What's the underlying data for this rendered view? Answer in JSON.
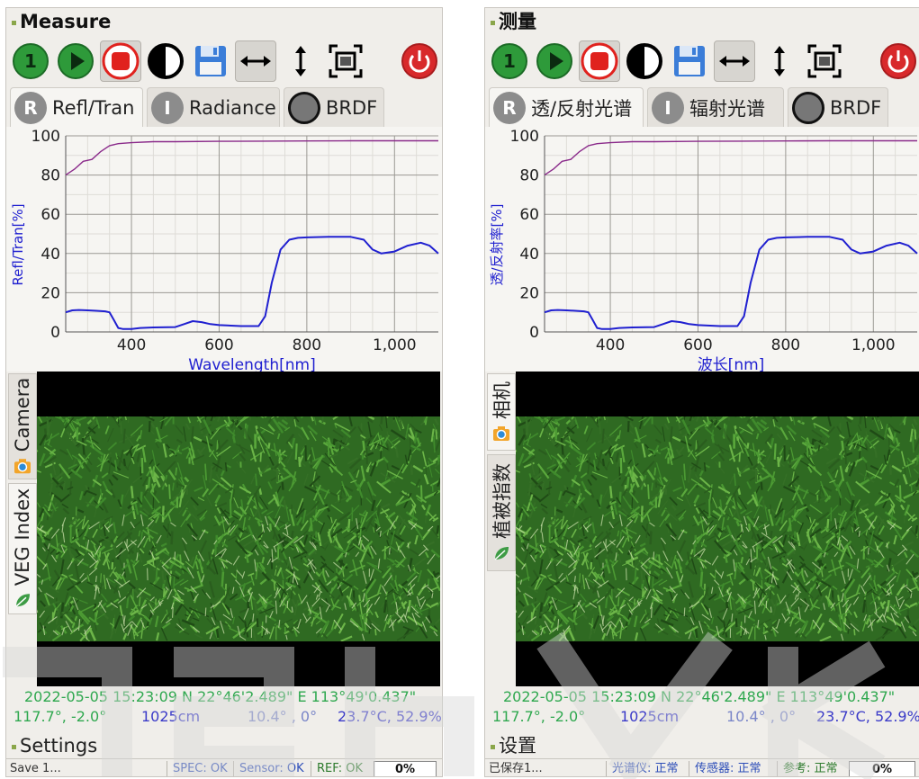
{
  "colors": {
    "green_btn": "#2e9a3a",
    "record_red": "#e0221e",
    "power_red": "#d8292b",
    "series_blue": "#2020d0",
    "series_purple": "#8a2a8a",
    "info_green": "#2fa84f",
    "info_blue": "#3a3ac8"
  },
  "left": {
    "title": "Measure",
    "toolbar": {
      "btn1": "1",
      "icons": [
        "one-icon",
        "play-icon",
        "record-icon",
        "contrast-icon",
        "save-icon",
        "horizontal-arrows-icon",
        "vertical-arrows-icon",
        "fit-screen-icon",
        "power-icon"
      ]
    },
    "tabs": [
      {
        "letter": "R",
        "label": "Refl/Tran"
      },
      {
        "letter": "I",
        "label": "Radiance"
      },
      {
        "letter": "",
        "label": "BRDF"
      }
    ],
    "chart_data": {
      "type": "line",
      "xlabel": "Wavelength[nm]",
      "ylabel": "Refl/Tran[%]",
      "xlim": [
        250,
        1100
      ],
      "ylim": [
        0,
        100
      ],
      "xticks": [
        400,
        600,
        800,
        1000
      ],
      "xtick_labels": [
        "400",
        "600",
        "800",
        "1,000"
      ],
      "yticks": [
        0,
        20,
        40,
        60,
        80,
        100
      ],
      "ytick_labels": [
        "0",
        "20",
        "40",
        "60",
        "80",
        "100"
      ],
      "grid": true,
      "series": [
        {
          "color": "#8a2a8a",
          "x": [
            250,
            270,
            290,
            310,
            330,
            350,
            370,
            400,
            450,
            500,
            600,
            700,
            800,
            900,
            1000,
            1100
          ],
          "y": [
            80,
            83,
            87,
            88,
            92,
            95,
            96,
            96.5,
            97,
            97,
            97.2,
            97.3,
            97.4,
            97.5,
            97.5,
            97.5
          ]
        },
        {
          "color": "#2020d0",
          "x": [
            250,
            265,
            280,
            300,
            320,
            340,
            350,
            360,
            370,
            380,
            400,
            420,
            450,
            500,
            520,
            540,
            560,
            580,
            600,
            650,
            690,
            705,
            720,
            740,
            760,
            780,
            800,
            850,
            900,
            930,
            950,
            970,
            1000,
            1030,
            1060,
            1080,
            1095,
            1100
          ],
          "y": [
            10,
            11,
            11.2,
            11,
            10.8,
            10.5,
            10,
            6,
            2,
            1.5,
            1.5,
            2,
            2.3,
            2.5,
            4,
            5.5,
            5,
            4,
            3.5,
            3,
            3,
            8,
            25,
            42,
            47,
            48,
            48.2,
            48.5,
            48.5,
            47,
            42,
            40,
            41,
            44,
            45.5,
            44,
            41,
            40
          ]
        }
      ]
    },
    "vtabs": [
      {
        "label": "VEG Index",
        "icon": "leaf-icon"
      },
      {
        "label": "Camera",
        "icon": "camera-icon"
      }
    ],
    "info": {
      "date": "2022-05-05",
      "time": "15:23:09",
      "lat": "N 22°46'2.489\"",
      "lon": "E 113°49'0.437\"",
      "angles": "117.7°, -2.0°",
      "height": "1025cm",
      "tilt": "10.4° , 0°",
      "temp": "23.7°C, 52.9%"
    },
    "settings": "Settings",
    "status": {
      "save": "Save 1...",
      "spec": "SPEC: OK",
      "sensor": "Sensor: OK",
      "ref": "REF: OK",
      "progress": "0%"
    }
  },
  "right": {
    "title": "测量",
    "toolbar": {
      "btn1": "1",
      "icons": [
        "one-icon",
        "play-icon",
        "record-icon",
        "contrast-icon",
        "save-icon",
        "horizontal-arrows-icon",
        "vertical-arrows-icon",
        "fit-screen-icon",
        "power-icon"
      ]
    },
    "tabs": [
      {
        "letter": "R",
        "label": "透/反射光谱"
      },
      {
        "letter": "I",
        "label": "辐射光谱"
      },
      {
        "letter": "",
        "label": "BRDF"
      }
    ],
    "chart_data": {
      "type": "line",
      "xlabel": "波长[nm]",
      "ylabel": "透/反射率[%]",
      "xlim": [
        250,
        1100
      ],
      "ylim": [
        0,
        100
      ],
      "xticks": [
        400,
        600,
        800,
        1000
      ],
      "xtick_labels": [
        "400",
        "600",
        "800",
        "1,000"
      ],
      "yticks": [
        0,
        20,
        40,
        60,
        80,
        100
      ],
      "ytick_labels": [
        "0",
        "20",
        "40",
        "60",
        "80",
        "100"
      ],
      "grid": true,
      "series": [
        {
          "color": "#8a2a8a",
          "x": [
            250,
            270,
            290,
            310,
            330,
            350,
            370,
            400,
            450,
            500,
            600,
            700,
            800,
            900,
            1000,
            1100
          ],
          "y": [
            80,
            83,
            87,
            88,
            92,
            95,
            96,
            96.5,
            97,
            97,
            97.2,
            97.3,
            97.4,
            97.5,
            97.5,
            97.5
          ]
        },
        {
          "color": "#2020d0",
          "x": [
            250,
            265,
            280,
            300,
            320,
            340,
            350,
            360,
            370,
            380,
            400,
            420,
            450,
            500,
            520,
            540,
            560,
            580,
            600,
            650,
            690,
            705,
            720,
            740,
            760,
            780,
            800,
            850,
            900,
            930,
            950,
            970,
            1000,
            1030,
            1060,
            1080,
            1095,
            1100
          ],
          "y": [
            10,
            11,
            11.2,
            11,
            10.8,
            10.5,
            10,
            6,
            2,
            1.5,
            1.5,
            2,
            2.3,
            2.5,
            4,
            5.5,
            5,
            4,
            3.5,
            3,
            3,
            8,
            25,
            42,
            47,
            48,
            48.2,
            48.5,
            48.5,
            47,
            42,
            40,
            41,
            44,
            45.5,
            44,
            41,
            40
          ]
        }
      ]
    },
    "vtabs": [
      {
        "label": "植被指数",
        "icon": "leaf-icon"
      },
      {
        "label": "相机",
        "icon": "camera-icon"
      }
    ],
    "info": {
      "date": "2022-05-05",
      "time": "15:23:09",
      "lat": "N 22°46'2.489\"",
      "lon": "E 113°49'0.437\"",
      "angles": "117.7°, -2.0°",
      "height": "1025cm",
      "tilt": "10.4° , 0°",
      "temp": "23.7°C, 52.9%"
    },
    "settings": "设置",
    "status": {
      "save": "已保存1...",
      "spec": "光谱仪: 正常",
      "sensor": "传感器: 正常",
      "ref": "参考: 正常",
      "progress": "0%"
    }
  }
}
